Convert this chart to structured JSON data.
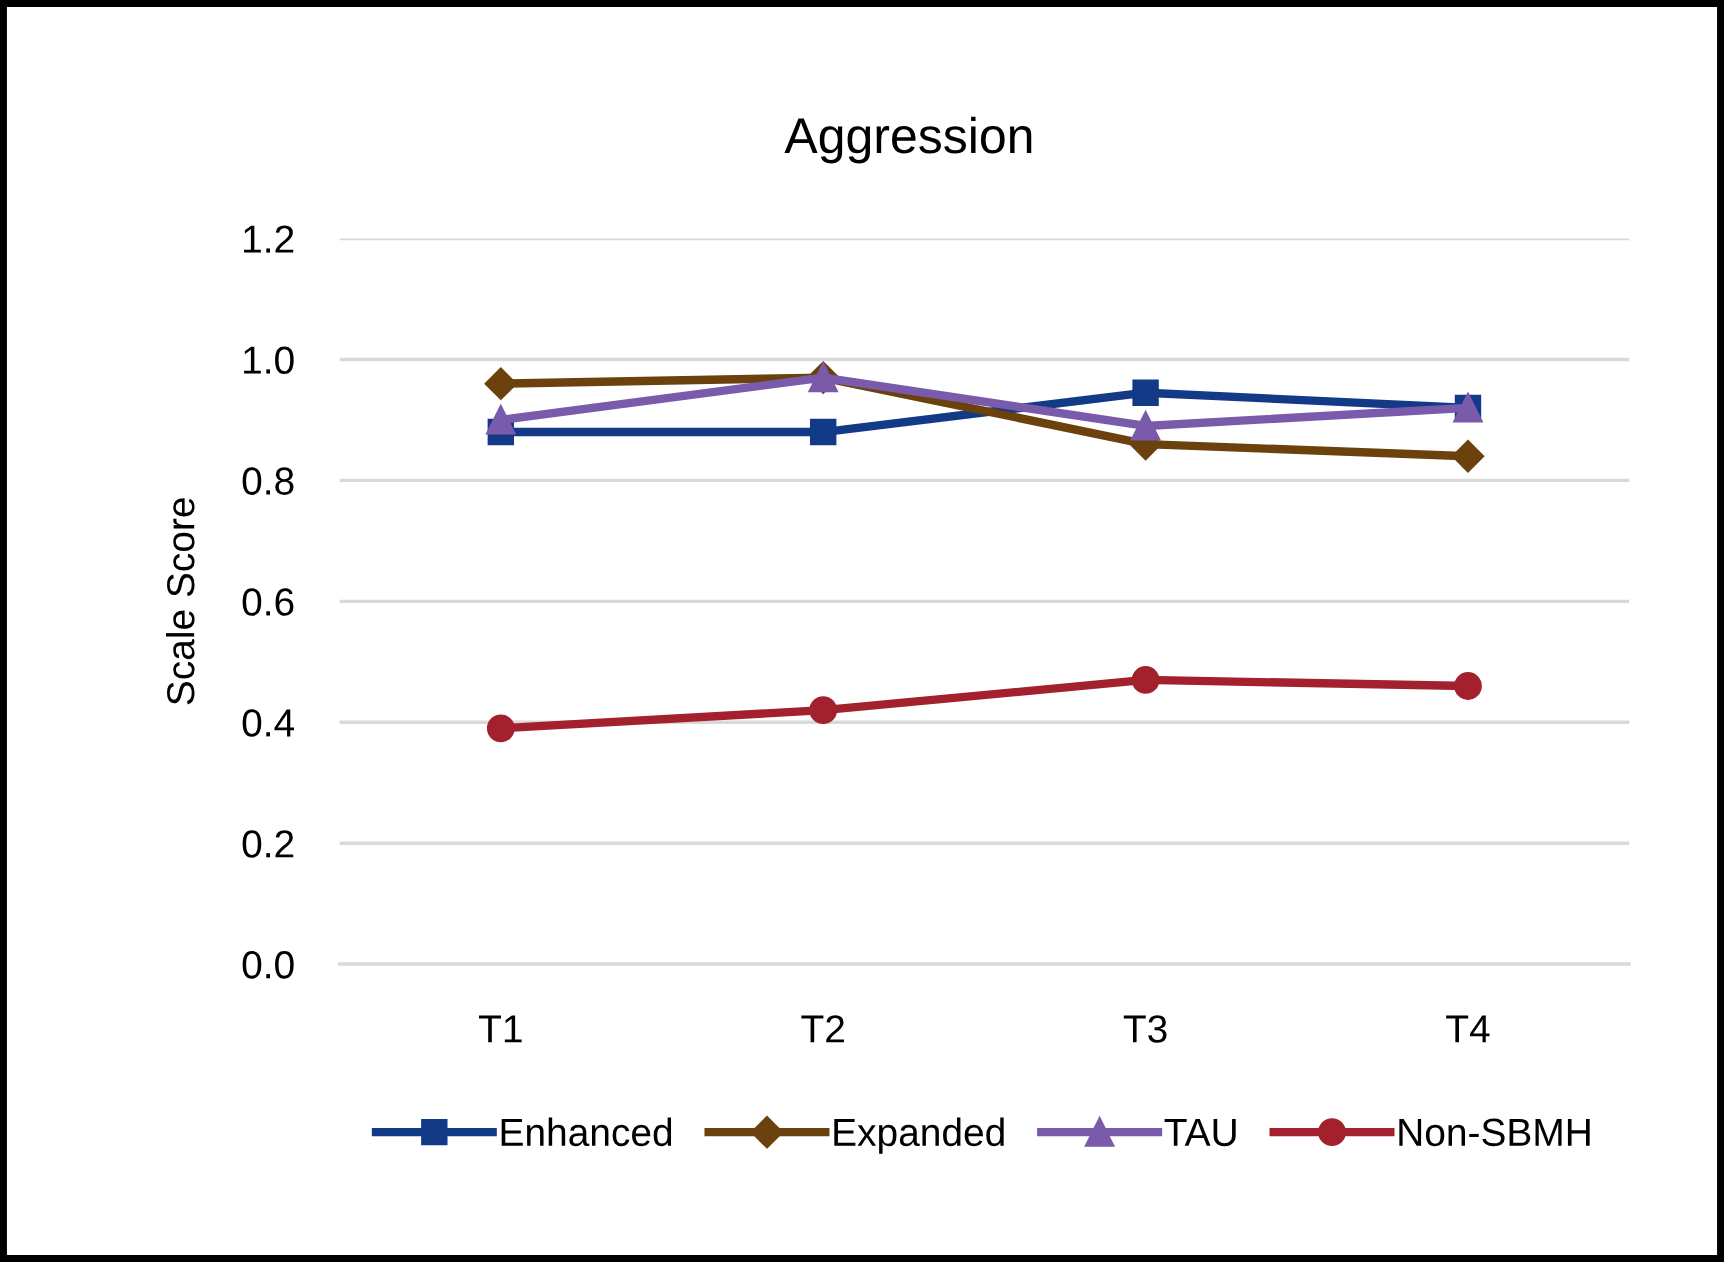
{
  "chart_data": {
    "type": "line",
    "title": "Aggression",
    "ylabel": "Scale Score",
    "categories": [
      "T1",
      "T2",
      "T3",
      "T4"
    ],
    "series": [
      {
        "name": "Enhanced",
        "color": "#123a86",
        "marker": "square",
        "values": [
          0.88,
          0.88,
          0.945,
          0.92
        ]
      },
      {
        "name": "Expanded",
        "color": "#6b410e",
        "marker": "diamond",
        "values": [
          0.96,
          0.97,
          0.86,
          0.84
        ]
      },
      {
        "name": "TAU",
        "color": "#7a5aab",
        "marker": "triangle",
        "values": [
          0.9,
          0.97,
          0.89,
          0.92
        ]
      },
      {
        "name": "Non-SBMH",
        "color": "#a3202d",
        "marker": "circle",
        "values": [
          0.39,
          0.42,
          0.47,
          0.46
        ]
      }
    ],
    "ylim": [
      0,
      1.2
    ],
    "yticks": [
      {
        "value": 0,
        "label": "0.0"
      },
      0.2,
      0.4,
      0.6,
      0.8,
      {
        "value": 1,
        "label": "1.0"
      },
      1.2
    ],
    "grid": "y",
    "legend": "bottom",
    "line_style": "solid"
  }
}
